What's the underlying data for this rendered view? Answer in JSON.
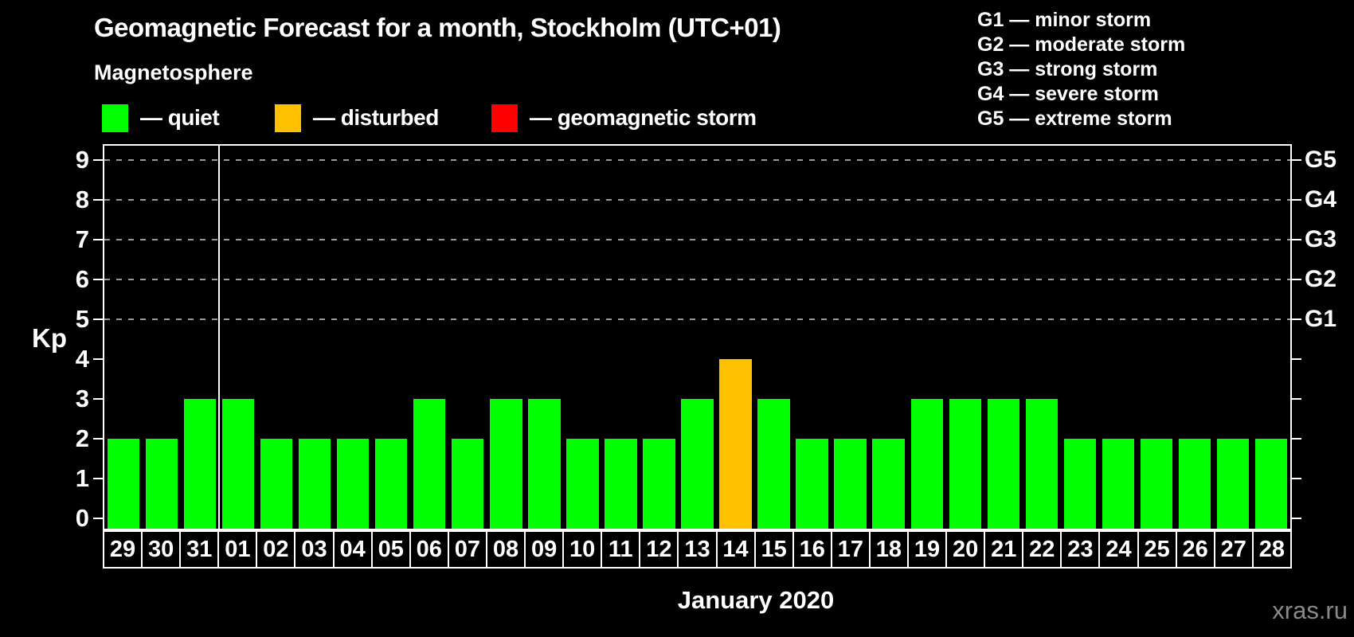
{
  "chart_data": {
    "type": "bar",
    "title": "Geomagnetic Forecast for a month, Stockholm (UTC+01)",
    "subtitle": "Magnetosphere",
    "xlabel": "January 2020",
    "ylabel": "Kp",
    "ylim": [
      0,
      9
    ],
    "yticks": [
      0,
      1,
      2,
      3,
      4,
      5,
      6,
      7,
      8,
      9
    ],
    "grid_dashed_at": [
      5,
      6,
      7,
      8,
      9
    ],
    "legend": [
      {
        "label": "— quiet",
        "status": "quiet",
        "color": "#00ff00"
      },
      {
        "label": "— disturbed",
        "status": "disturbed",
        "color": "#ffc000"
      },
      {
        "label": "— geomagnetic storm",
        "status": "storm",
        "color": "#ff0000"
      }
    ],
    "g_scale_legend": [
      "G1 — minor storm",
      "G2 — moderate storm",
      "G3 — strong storm",
      "G4 — severe storm",
      "G5 — extreme storm"
    ],
    "right_axis_labels": [
      {
        "label": "G1",
        "kp": 5
      },
      {
        "label": "G2",
        "kp": 6
      },
      {
        "label": "G3",
        "kp": 7
      },
      {
        "label": "G4",
        "kp": 8
      },
      {
        "label": "G5",
        "kp": 9
      }
    ],
    "categories": [
      "29",
      "30",
      "31",
      "01",
      "02",
      "03",
      "04",
      "05",
      "06",
      "07",
      "08",
      "09",
      "10",
      "11",
      "12",
      "13",
      "14",
      "15",
      "16",
      "17",
      "18",
      "19",
      "20",
      "21",
      "22",
      "23",
      "24",
      "25",
      "26",
      "27",
      "28"
    ],
    "values": [
      2,
      2,
      3,
      3,
      2,
      2,
      2,
      2,
      3,
      2,
      3,
      3,
      2,
      2,
      2,
      3,
      4,
      3,
      2,
      2,
      2,
      3,
      3,
      3,
      3,
      2,
      2,
      2,
      2,
      2,
      2
    ],
    "statuses": [
      "quiet",
      "quiet",
      "quiet",
      "quiet",
      "quiet",
      "quiet",
      "quiet",
      "quiet",
      "quiet",
      "quiet",
      "quiet",
      "quiet",
      "quiet",
      "quiet",
      "quiet",
      "quiet",
      "disturbed",
      "quiet",
      "quiet",
      "quiet",
      "quiet",
      "quiet",
      "quiet",
      "quiet",
      "quiet",
      "quiet",
      "quiet",
      "quiet",
      "quiet",
      "quiet",
      "quiet"
    ],
    "month_separator_after_category": "31"
  },
  "footer": {
    "watermark": "xras.ru"
  }
}
